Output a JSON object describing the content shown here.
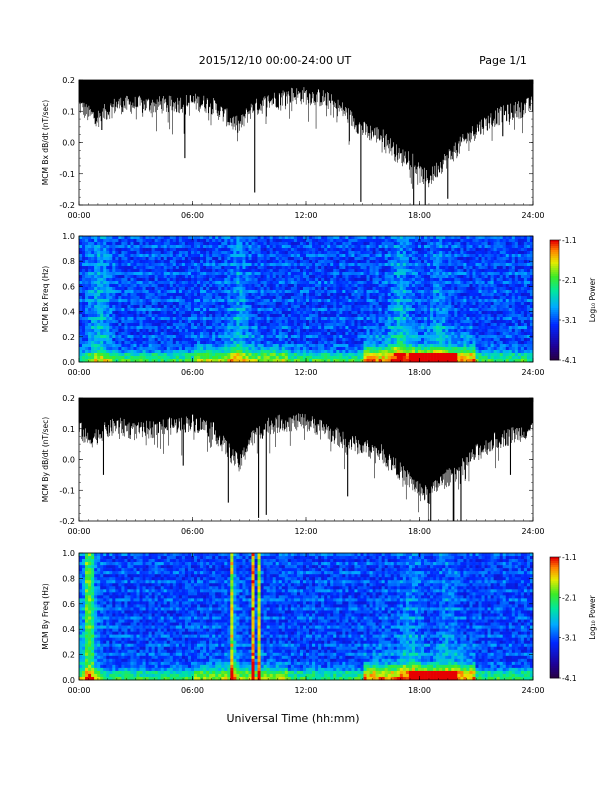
{
  "header": {
    "title": "2015/12/10   00:00-24:00 UT",
    "page": "Page 1/1"
  },
  "footer": {
    "xlabel": "Universal Time (hh:mm)"
  },
  "chart_data": [
    {
      "type": "line",
      "ylabel": "MCM Bx dB/dt (nT/sec)",
      "x_ticks": [
        "00:00",
        "06:00",
        "12:00",
        "18:00",
        "24:00"
      ],
      "y_ticks": [
        "0.2",
        "0.1",
        "0.0",
        "-0.1",
        "-0.2"
      ],
      "ylim": [
        -0.2,
        0.2
      ],
      "xlim_hours": [
        0,
        24
      ],
      "dense_band_lower_by_hour": [
        [
          0,
          0.12
        ],
        [
          0.5,
          0.09
        ],
        [
          1,
          0.08
        ],
        [
          1.5,
          0.1
        ],
        [
          2,
          0.12
        ],
        [
          3,
          0.12
        ],
        [
          4,
          0.12
        ],
        [
          5,
          0.12
        ],
        [
          6,
          0.13
        ],
        [
          7,
          0.12
        ],
        [
          8,
          0.07
        ],
        [
          8.5,
          0.05
        ],
        [
          9,
          0.1
        ],
        [
          10,
          0.13
        ],
        [
          11,
          0.15
        ],
        [
          12,
          0.15
        ],
        [
          13,
          0.14
        ],
        [
          14,
          0.1
        ],
        [
          15,
          0.04
        ],
        [
          16,
          0.02
        ],
        [
          17,
          -0.05
        ],
        [
          17.5,
          -0.04
        ],
        [
          18,
          -0.1
        ],
        [
          18.5,
          -0.12
        ],
        [
          19,
          -0.08
        ],
        [
          20,
          -0.02
        ],
        [
          21,
          0.04
        ],
        [
          22,
          0.08
        ],
        [
          23,
          0.1
        ],
        [
          24,
          0.12
        ]
      ],
      "spikes_by_hour": [
        [
          1.2,
          0.04
        ],
        [
          5.6,
          -0.05
        ],
        [
          9.3,
          -0.16
        ],
        [
          14.9,
          -0.19
        ],
        [
          17.7,
          -0.2
        ],
        [
          18.3,
          -0.2
        ],
        [
          19.5,
          -0.18
        ],
        [
          22.4,
          0.02
        ]
      ]
    },
    {
      "type": "heatmap",
      "ylabel": "MCM Bx Freq (Hz)",
      "x_ticks": [
        "00:00",
        "06:00",
        "12:00",
        "18:00",
        "24:00"
      ],
      "y_ticks": [
        "1.0",
        "0.8",
        "0.6",
        "0.4",
        "0.2",
        "0.0"
      ],
      "ylim": [
        0.0,
        1.0
      ],
      "colorbar": {
        "label": "Log₁₀ Power",
        "ticks": [
          "-1.1",
          "-2.1",
          "-3.1",
          "-4.1"
        ],
        "range": [
          -4.1,
          -1.1
        ]
      },
      "bright_bursts_by_hour": [
        [
          1.1,
          0.6
        ],
        [
          8.4,
          0.45
        ],
        [
          17.0,
          0.55
        ],
        [
          19.0,
          0.35
        ]
      ]
    },
    {
      "type": "line",
      "ylabel": "MCM By dB/dt (nT/sec)",
      "x_ticks": [
        "00:00",
        "06:00",
        "12:00",
        "18:00",
        "24:00"
      ],
      "y_ticks": [
        "0.2",
        "0.1",
        "0.0",
        "-0.1",
        "-0.2"
      ],
      "ylim": [
        -0.2,
        0.2
      ],
      "xlim_hours": [
        0,
        24
      ],
      "dense_band_lower_by_hour": [
        [
          0,
          0.1
        ],
        [
          0.5,
          0.06
        ],
        [
          1,
          0.08
        ],
        [
          2,
          0.11
        ],
        [
          3,
          0.09
        ],
        [
          4,
          0.1
        ],
        [
          5,
          0.11
        ],
        [
          6,
          0.12
        ],
        [
          7,
          0.1
        ],
        [
          8,
          0.02
        ],
        [
          8.5,
          -0.02
        ],
        [
          9,
          0.06
        ],
        [
          10,
          0.11
        ],
        [
          11,
          0.12
        ],
        [
          12,
          0.12
        ],
        [
          13,
          0.1
        ],
        [
          14,
          0.06
        ],
        [
          15,
          0.04
        ],
        [
          16,
          0.02
        ],
        [
          17,
          -0.04
        ],
        [
          18,
          -0.1
        ],
        [
          18.5,
          -0.12
        ],
        [
          19,
          -0.08
        ],
        [
          20,
          -0.04
        ],
        [
          21,
          0.02
        ],
        [
          22,
          0.06
        ],
        [
          23,
          0.08
        ],
        [
          24,
          0.1
        ]
      ],
      "spikes_by_hour": [
        [
          1.3,
          -0.05
        ],
        [
          5.5,
          -0.02
        ],
        [
          7.9,
          -0.14
        ],
        [
          9.5,
          -0.19
        ],
        [
          9.9,
          -0.18
        ],
        [
          14.2,
          -0.12
        ],
        [
          18.6,
          -0.2
        ],
        [
          19.8,
          -0.2
        ],
        [
          20.2,
          -0.2
        ],
        [
          22.8,
          -0.05
        ]
      ]
    },
    {
      "type": "heatmap",
      "ylabel": "MCM By Freq (Hz)",
      "x_ticks": [
        "00:00",
        "06:00",
        "12:00",
        "18:00",
        "24:00"
      ],
      "y_ticks": [
        "1.0",
        "0.8",
        "0.6",
        "0.4",
        "0.2",
        "0.0"
      ],
      "ylim": [
        0.0,
        1.0
      ],
      "colorbar": {
        "label": "Log₁₀ Power",
        "ticks": [
          "-1.1",
          "-2.1",
          "-3.1",
          "-4.1"
        ],
        "range": [
          -4.1,
          -1.1
        ]
      },
      "bright_bursts_by_hour": [
        [
          0.5,
          0.7
        ],
        [
          8.1,
          1.0
        ],
        [
          8.3,
          1.0
        ],
        [
          9.2,
          1.0
        ],
        [
          9.5,
          1.0
        ],
        [
          17.5,
          0.4
        ],
        [
          19.5,
          0.3
        ]
      ]
    }
  ]
}
